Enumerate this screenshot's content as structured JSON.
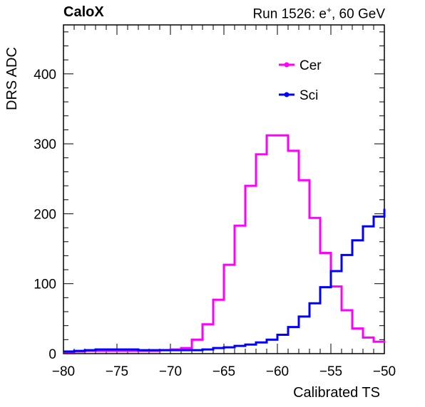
{
  "header": {
    "experiment": "CaloX",
    "run_prefix": "Run 1526: e",
    "run_sup": "+",
    "run_suffix": ", 60 GeV"
  },
  "chart_data": {
    "type": "line",
    "step": true,
    "xlabel": "Calibrated TS",
    "ylabel": "DRS ADC",
    "xlim": [
      -80,
      -50
    ],
    "ylim": [
      0,
      470
    ],
    "xticks": [
      -80,
      -75,
      -70,
      -65,
      -60,
      -55,
      -50
    ],
    "xtick_labels": [
      "−80",
      "−75",
      "−70",
      "−65",
      "−60",
      "−55",
      "−50"
    ],
    "yticks": [
      0,
      100,
      200,
      300,
      400
    ],
    "ytick_labels": [
      "0",
      "100",
      "200",
      "300",
      "400"
    ],
    "grid": false,
    "legend_position": "top-right",
    "x_edges": [
      -80,
      -79,
      -78,
      -77,
      -76,
      -75,
      -74,
      -73,
      -72,
      -71,
      -70,
      -69,
      -68,
      -67,
      -66,
      -65,
      -64,
      -63,
      -62,
      -61,
      -60,
      -59,
      -58,
      -57,
      -56,
      -55,
      -54,
      -53,
      -52,
      -51,
      -50
    ],
    "series": [
      {
        "name": "Cer",
        "color": "#ff00ff",
        "values": [
          2,
          3,
          4,
          4,
          4,
          4,
          4,
          4,
          4,
          5,
          6,
          8,
          20,
          42,
          77,
          127,
          183,
          240,
          285,
          312,
          312,
          290,
          248,
          194,
          144,
          96,
          62,
          36,
          23,
          17
        ]
      },
      {
        "name": "Sci",
        "color": "#0000ff",
        "values": [
          3,
          4,
          5,
          6,
          6,
          6,
          6,
          5,
          5,
          5,
          5,
          5,
          5,
          6,
          8,
          9,
          11,
          13,
          16,
          20,
          27,
          38,
          53,
          72,
          95,
          118,
          141,
          162,
          182,
          196
        ]
      }
    ],
    "end_values": [
      18,
      207
    ]
  }
}
